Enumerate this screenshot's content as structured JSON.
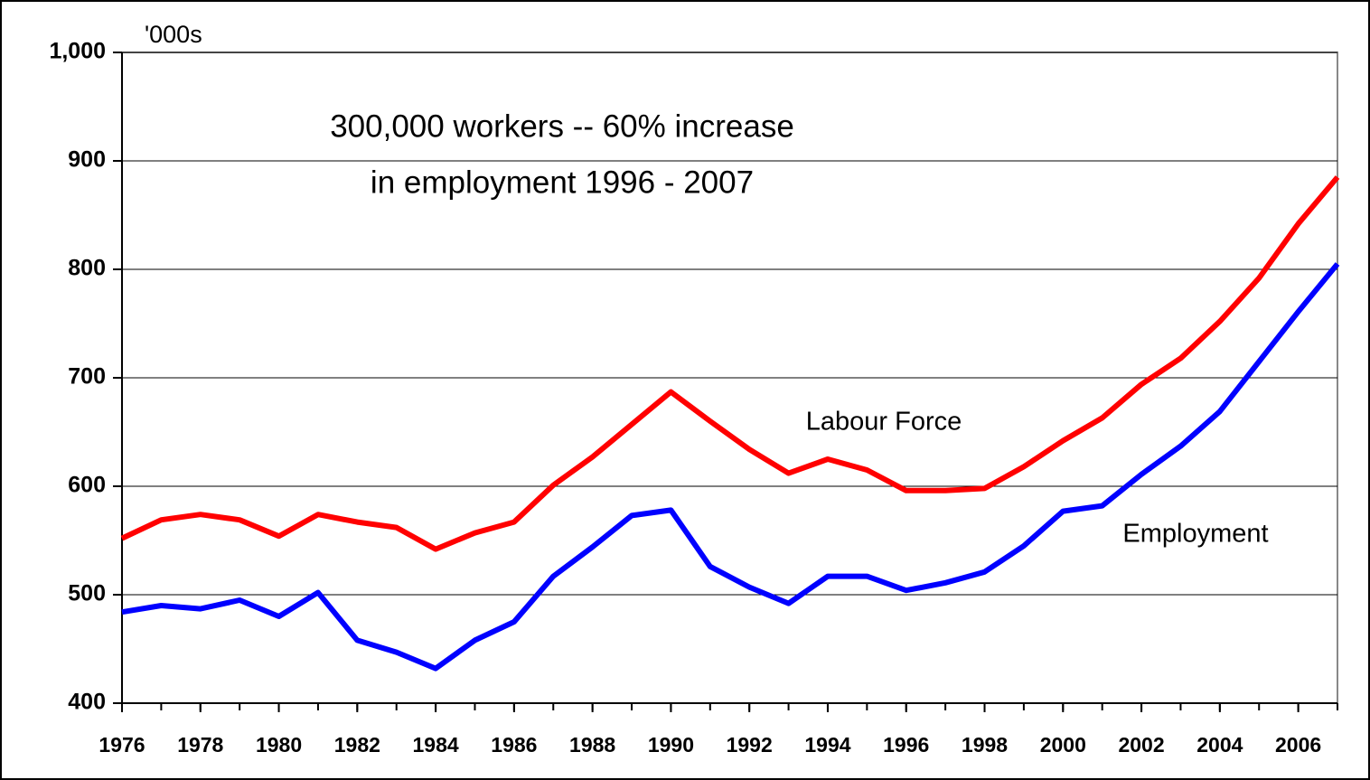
{
  "chart_data": {
    "type": "line",
    "y_label": "'000s",
    "annotations": [
      "300,000 workers -- 60% increase",
      "in employment 1996 - 2007"
    ],
    "x": [
      1976,
      1977,
      1978,
      1979,
      1980,
      1981,
      1982,
      1983,
      1984,
      1985,
      1986,
      1987,
      1988,
      1989,
      1990,
      1991,
      1992,
      1993,
      1994,
      1995,
      1996,
      1997,
      1998,
      1999,
      2000,
      2001,
      2002,
      2003,
      2004,
      2005,
      2006,
      2007
    ],
    "series": [
      {
        "name": "Labour Force",
        "color": "#ff0000",
        "values": [
          552,
          569,
          574,
          569,
          554,
          574,
          567,
          562,
          542,
          557,
          567,
          601,
          627,
          657,
          687,
          660,
          634,
          612,
          625,
          615,
          596,
          596,
          598,
          618,
          642,
          663,
          694,
          718,
          752,
          792,
          842,
          885
        ]
      },
      {
        "name": "Employment",
        "color": "#0000ff",
        "values": [
          484,
          490,
          487,
          495,
          480,
          502,
          458,
          447,
          432,
          458,
          475,
          517,
          544,
          573,
          578,
          526,
          507,
          492,
          517,
          517,
          504,
          511,
          521,
          545,
          577,
          582,
          611,
          637,
          669,
          715,
          761,
          805
        ]
      }
    ],
    "xlim": [
      1976,
      2007
    ],
    "xticks": [
      1976,
      1978,
      1980,
      1982,
      1984,
      1986,
      1988,
      1990,
      1992,
      1994,
      1996,
      1998,
      2000,
      2002,
      2004,
      2006
    ],
    "ylim": [
      400,
      1000
    ],
    "yticks": [
      400,
      500,
      600,
      700,
      800,
      900,
      {
        "value": 1000,
        "label": "1,000"
      }
    ],
    "grid": true
  }
}
